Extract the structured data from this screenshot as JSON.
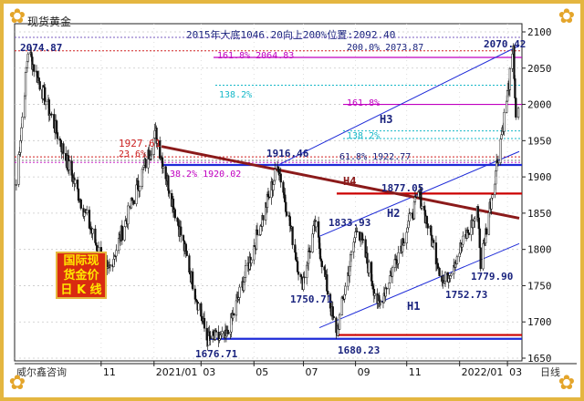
{
  "chart_title": "现货黄金",
  "brand": "威尔鑫咨询",
  "period_label": "日线",
  "stamp_lines": [
    "国际现",
    "货金价",
    "日 K 线"
  ],
  "colors": {
    "up": "#ffffff",
    "down": "#111111",
    "blue": "#1e2bd8",
    "red": "#cc0000",
    "maroon": "#8b1a1a",
    "magenta": "#c000c0",
    "cyan": "#16b8c8",
    "navy": "#1a237e",
    "frame": "#e4b640"
  },
  "icons": [
    "corner-ornament-icon"
  ],
  "chart_data": {
    "type": "candlestick",
    "title": "现货黄金",
    "y_axis": {
      "min": 1650,
      "max": 2100,
      "ticks": [
        1650,
        1700,
        1750,
        1800,
        1850,
        1900,
        1950,
        2000,
        2050,
        2100
      ],
      "position": "right"
    },
    "x_axis": {
      "ticks": [
        "11",
        "2021/01",
        "03",
        "05",
        "07",
        "09",
        "11",
        "2022/01",
        "03"
      ]
    },
    "grid": true,
    "note": "2015年大底1046.20向上200%位置:2092.40",
    "price_labels": [
      "2074.87",
      "1927.61",
      "1916.46",
      "1877.05",
      "1833.93",
      "1750.71",
      "1752.73",
      "1779.90",
      "1676.71",
      "1680.23",
      "2070.42"
    ],
    "fib_labels": [
      "161.8% 2064.83",
      "200.0% 2073.87",
      "138.2%",
      "161.8%",
      "138.2%",
      "61.8% 1922.77",
      "38.2% 1920.02",
      "23.6%"
    ],
    "trend_labels": [
      "H1",
      "H2",
      "H3",
      "H4"
    ],
    "key_levels": [
      2092.4,
      2073.87,
      2064.83,
      2026.5,
      2004,
      1964,
      1953,
      1927.61,
      1922.77,
      1920.02,
      1916.46,
      1877.05,
      1680.23,
      1676.71
    ],
    "swing_points": [
      {
        "date": "2020-08-07",
        "price": 2074.87
      },
      {
        "date": "2020-11-09",
        "price": 1764.0
      },
      {
        "date": "2021-01-06",
        "price": 1959.4
      },
      {
        "date": "2021-03-08",
        "price": 1676.71
      },
      {
        "date": "2021-03-31",
        "price": 1677.0
      },
      {
        "date": "2021-06-01",
        "price": 1916.46
      },
      {
        "date": "2021-06-29",
        "price": 1750.71
      },
      {
        "date": "2021-07-15",
        "price": 1833.93
      },
      {
        "date": "2021-08-09",
        "price": 1680.23
      },
      {
        "date": "2021-09-03",
        "price": 1834.0
      },
      {
        "date": "2021-09-29",
        "price": 1721.0
      },
      {
        "date": "2021-11-16",
        "price": 1877.05
      },
      {
        "date": "2021-12-15",
        "price": 1752.73
      },
      {
        "date": "2022-01-25",
        "price": 1853.0
      },
      {
        "date": "2022-01-28",
        "price": 1779.9
      },
      {
        "date": "2022-02-24",
        "price": 1974.0
      },
      {
        "date": "2022-03-08",
        "price": 2070.42
      },
      {
        "date": "2022-03-11",
        "price": 1985.0
      }
    ]
  }
}
